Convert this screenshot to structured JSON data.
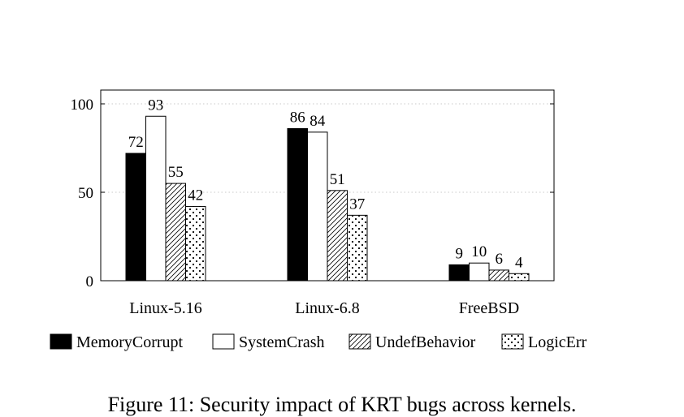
{
  "chart_data": {
    "type": "bar",
    "categories": [
      "Linux-5.16",
      "Linux-6.8",
      "FreeBSD"
    ],
    "series": [
      {
        "name": "MemoryCorrupt",
        "values": [
          72,
          86,
          9
        ],
        "pattern": "solid"
      },
      {
        "name": "SystemCrash",
        "values": [
          93,
          84,
          10
        ],
        "pattern": "empty"
      },
      {
        "name": "UndefBehavior",
        "values": [
          55,
          51,
          6
        ],
        "pattern": "hatch"
      },
      {
        "name": "LogicErr",
        "values": [
          42,
          37,
          4
        ],
        "pattern": "dots"
      }
    ],
    "yticks": [
      0,
      50,
      100
    ],
    "ylim": [
      0,
      107
    ],
    "grid": "horizontal-dotted",
    "legend_position": "bottom",
    "title": "",
    "xlabel": "",
    "ylabel": ""
  },
  "caption": "Figure 11: Security impact of KRT bugs across kernels."
}
